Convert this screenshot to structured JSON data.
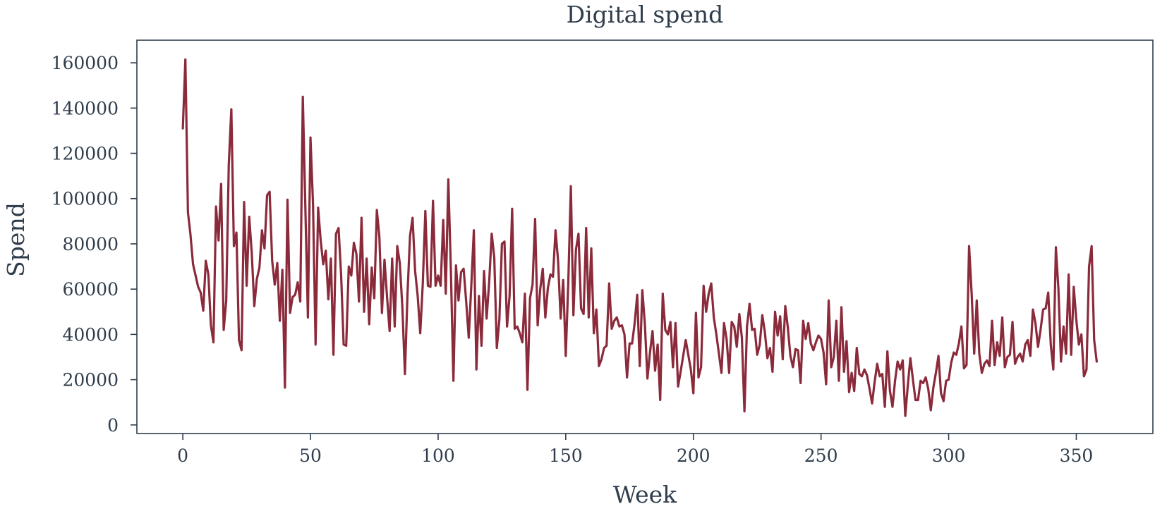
{
  "chart_data": {
    "type": "line",
    "title": "Digital spend",
    "xlabel": "Week",
    "ylabel": "Spend",
    "xlim": [
      -18,
      380
    ],
    "ylim": [
      -3800,
      170000
    ],
    "xticks": [
      0,
      50,
      100,
      150,
      200,
      250,
      300,
      350
    ],
    "xtick_labels": [
      "0",
      "50",
      "100",
      "150",
      "200",
      "250",
      "300",
      "350"
    ],
    "yticks": [
      0,
      20000,
      40000,
      60000,
      80000,
      100000,
      120000,
      140000,
      160000
    ],
    "ytick_labels": [
      "0",
      "20000",
      "40000",
      "60000",
      "80000",
      "100000",
      "120000",
      "140000",
      "160000"
    ],
    "grid": false,
    "colors": {
      "line": "#8b2a3a",
      "axes": "#2f3d4c",
      "text": "#2f3d4c",
      "background": "#ffffff"
    },
    "series": [
      {
        "values": [
          131000,
          161500,
          94000,
          84000,
          71000,
          66000,
          61000,
          58500,
          50500,
          72500,
          66500,
          44000,
          36500,
          96500,
          81500,
          106500,
          42000,
          55000,
          115000,
          139500,
          79000,
          85000,
          37500,
          33000,
          98500,
          61500,
          92000,
          76000,
          52500,
          64500,
          69500,
          86000,
          78000,
          101500,
          103000,
          72500,
          62000,
          71500,
          46000,
          68500,
          16500,
          99500,
          49500,
          56500,
          57500,
          63000,
          54500,
          145000,
          96000,
          47500,
          127000,
          97500,
          35500,
          96000,
          81500,
          71000,
          77000,
          55500,
          73500,
          31000,
          84500,
          87000,
          66500,
          35500,
          35000,
          70000,
          66000,
          80500,
          75500,
          54500,
          91500,
          50000,
          73500,
          44500,
          69500,
          56000,
          95000,
          83000,
          49500,
          73000,
          56500,
          41500,
          73500,
          43500,
          79000,
          71500,
          52000,
          22500,
          57500,
          83500,
          91500,
          68000,
          57000,
          40500,
          62500,
          94500,
          61500,
          61000,
          99000,
          61500,
          66000,
          61500,
          90500,
          58000,
          108500,
          68500,
          19500,
          70500,
          55000,
          67500,
          69000,
          54500,
          38500,
          61500,
          86000,
          24500,
          57000,
          35000,
          68000,
          47000,
          63000,
          84500,
          74000,
          34000,
          46500,
          80000,
          81000,
          43500,
          57000,
          95500,
          42500,
          43500,
          40500,
          36500,
          58000,
          15500,
          56000,
          62000,
          91000,
          44000,
          60000,
          69000,
          47500,
          60500,
          66500,
          65500,
          86000,
          72500,
          47000,
          64000,
          30500,
          63000,
          105500,
          48500,
          77500,
          84500,
          51500,
          49000,
          87000,
          47500,
          78000,
          40500,
          51000,
          26000,
          29000,
          34000,
          35000,
          62500,
          42500,
          46000,
          47500,
          43500,
          44000,
          40000,
          21000,
          36000,
          36000,
          45000,
          57500,
          26000,
          59500,
          44500,
          20500,
          32000,
          41500,
          24000,
          35500,
          11000,
          58000,
          42000,
          40000,
          45500,
          25500,
          45000,
          17000,
          23500,
          30500,
          37500,
          31000,
          24500,
          14000,
          49500,
          21000,
          25500,
          61500,
          50000,
          58000,
          62500,
          47500,
          40000,
          31500,
          23000,
          45000,
          38000,
          23000,
          45500,
          43500,
          34500,
          49000,
          38500,
          6000,
          43500,
          53500,
          42000,
          42500,
          31000,
          35500,
          48500,
          41000,
          29500,
          34000,
          23500,
          50000,
          39500,
          48000,
          29000,
          52500,
          43000,
          30500,
          25500,
          33500,
          33000,
          18500,
          46000,
          38000,
          45000,
          36000,
          33000,
          36500,
          39500,
          38000,
          32000,
          18000,
          55000,
          25500,
          30000,
          46000,
          19500,
          52000,
          23500,
          37000,
          14500,
          23000,
          15000,
          34000,
          22500,
          21500,
          24500,
          22000,
          16000,
          9500,
          19000,
          27000,
          21500,
          22500,
          8000,
          32500,
          15000,
          8000,
          19500,
          28000,
          24500,
          28500,
          4000,
          17500,
          29500,
          20000,
          11000,
          11000,
          19500,
          18500,
          21000,
          16000,
          6500,
          16500,
          23000,
          30500,
          14000,
          10500,
          19500,
          20000,
          27500,
          32000,
          31000,
          36000,
          43500,
          25000,
          26500,
          79000,
          58000,
          31500,
          55000,
          31500,
          23000,
          27000,
          28500,
          26000,
          46000,
          26500,
          36500,
          30500,
          47500,
          25500,
          30000,
          31000,
          45500,
          27000,
          30000,
          31500,
          28000,
          35500,
          37500,
          30500,
          51000,
          45000,
          34500,
          42000,
          51000,
          51500,
          58500,
          35500,
          24500,
          78500,
          60000,
          28000,
          43500,
          31500,
          66500,
          31000,
          61000,
          46500,
          35500,
          40000,
          21500,
          24500,
          70000,
          79000,
          37500,
          28000
        ]
      }
    ]
  }
}
